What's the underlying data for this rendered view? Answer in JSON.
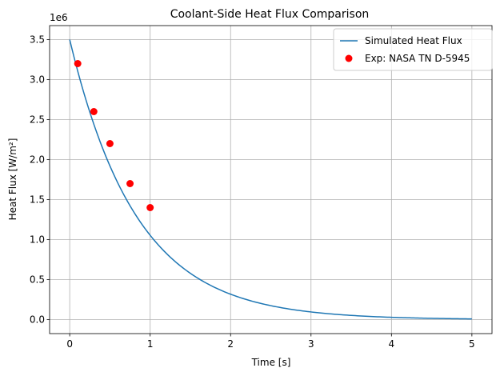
{
  "chart_data": {
    "type": "line",
    "title": "Coolant-Side Heat Flux Comparison",
    "xlabel": "Time [s]",
    "ylabel": "Heat Flux [W/m²]",
    "y_scale_label": "1e6",
    "xlim": [
      -0.25,
      5.25
    ],
    "ylim": [
      -175000,
      3675000
    ],
    "x_ticks": [
      0,
      1,
      2,
      3,
      4,
      5
    ],
    "x_tick_labels": [
      "0",
      "1",
      "2",
      "3",
      "4",
      "5"
    ],
    "y_ticks": [
      0,
      500000,
      1000000,
      1500000,
      2000000,
      2500000,
      3000000,
      3500000
    ],
    "y_tick_labels": [
      "0.0",
      "0.5",
      "1.0",
      "1.5",
      "2.0",
      "2.5",
      "3.0",
      "3.5"
    ],
    "grid": true,
    "legend_position": "top-right",
    "series": [
      {
        "name": "Simulated Heat Flux",
        "kind": "line",
        "color": "#1f77b4",
        "model": "exponential decay",
        "initial_value": 3500000,
        "decay_rate": 1.2,
        "x_range": [
          0,
          5
        ]
      },
      {
        "name": "Exp: NASA TN D-5945",
        "kind": "scatter",
        "color": "#ff0000",
        "x": [
          0.1,
          0.3,
          0.5,
          0.75,
          1.0
        ],
        "y": [
          3200000,
          2600000,
          2200000,
          1700000,
          1400000
        ]
      }
    ]
  }
}
